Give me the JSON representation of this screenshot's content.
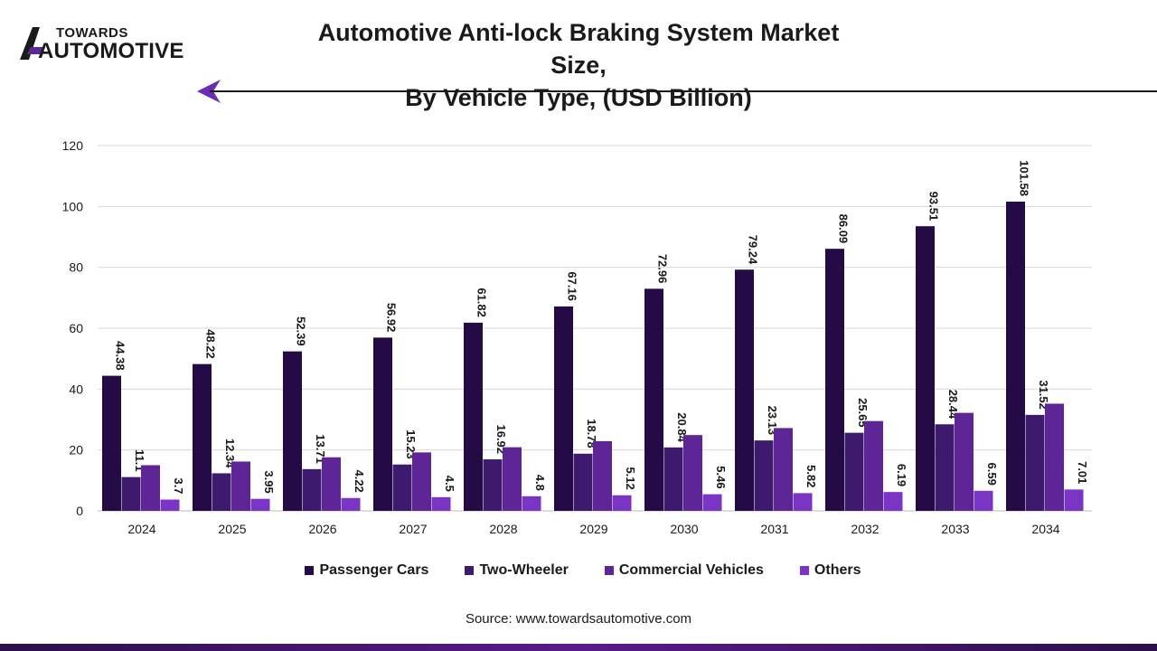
{
  "logo": {
    "line1": "TOWARDS",
    "line2": "AUTOMOTIVE"
  },
  "title": {
    "line1": "Automotive Anti-lock Braking System Market Size,",
    "line2": "By Vehicle Type, (USD Billion)"
  },
  "source": "Source: www.towardsautomotive.com",
  "colors": {
    "accent": "#5b2a91",
    "dark": "#250b45"
  },
  "chart_data": {
    "type": "bar",
    "title": "Automotive Anti-lock Braking System Market Size, By Vehicle Type, (USD Billion)",
    "xlabel": "",
    "ylabel": "",
    "ylim": [
      0,
      120
    ],
    "yticks": [
      0,
      20,
      40,
      60,
      80,
      100,
      120
    ],
    "grid": true,
    "legend_position": "bottom",
    "categories": [
      "2024",
      "2025",
      "2026",
      "2027",
      "2028",
      "2029",
      "2030",
      "2031",
      "2032",
      "2033",
      "2034"
    ],
    "series": [
      {
        "name": "Passenger Cars",
        "color": "#250b45",
        "labeled": true,
        "values": [
          44.38,
          48.22,
          52.39,
          56.92,
          61.82,
          67.16,
          72.96,
          79.24,
          86.09,
          93.51,
          101.58
        ]
      },
      {
        "name": "Two-Wheeler",
        "color": "#3e1a6e",
        "labeled": true,
        "values": [
          11.1,
          12.34,
          13.71,
          15.23,
          16.92,
          18.78,
          20.84,
          23.13,
          25.65,
          28.44,
          31.52
        ]
      },
      {
        "name": "Commercial Vehicles",
        "color": "#5d2596",
        "labeled": false,
        "values": [
          15.0,
          16.2,
          17.6,
          19.2,
          20.9,
          22.9,
          24.9,
          27.2,
          29.5,
          32.2,
          35.2
        ]
      },
      {
        "name": "Others",
        "color": "#7b35c4",
        "labeled": true,
        "values": [
          3.7,
          3.95,
          4.22,
          4.5,
          4.8,
          5.12,
          5.46,
          5.82,
          6.19,
          6.59,
          7.01
        ]
      }
    ]
  }
}
